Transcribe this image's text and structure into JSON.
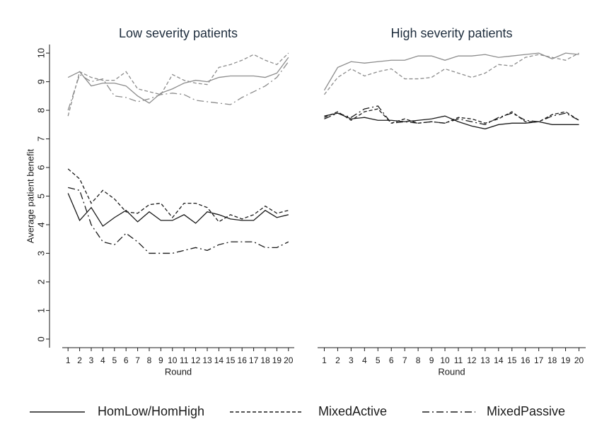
{
  "chart_data": [
    {
      "type": "line",
      "title": "Low severity patients",
      "xlabel": "Round",
      "ylabel": "Average patient benefit",
      "x": [
        1,
        2,
        3,
        4,
        5,
        6,
        7,
        8,
        9,
        10,
        11,
        12,
        13,
        14,
        15,
        16,
        17,
        18,
        19,
        20
      ],
      "xlim": [
        0.5,
        20.5
      ],
      "xticks": [
        1,
        2,
        3,
        4,
        5,
        6,
        7,
        8,
        9,
        10,
        11,
        12,
        13,
        14,
        15,
        16,
        17,
        18,
        19,
        20
      ],
      "ylim": [
        -0.3,
        10.3
      ],
      "yticks": [
        0,
        1,
        2,
        3,
        4,
        5,
        6,
        7,
        8,
        9,
        10
      ],
      "series": [
        {
          "color": "#8c8c8c",
          "dash": "solid",
          "values": [
            9.15,
            9.35,
            8.85,
            8.95,
            8.95,
            8.85,
            8.5,
            8.25,
            8.6,
            8.75,
            8.95,
            9.05,
            9.0,
            9.15,
            9.2,
            9.2,
            9.2,
            9.15,
            9.3,
            9.85
          ]
        },
        {
          "color": "#8c8c8c",
          "dash": "dashed",
          "values": [
            7.8,
            9.35,
            9.15,
            9.05,
            9.05,
            9.35,
            8.75,
            8.65,
            8.55,
            9.25,
            9.05,
            8.95,
            8.9,
            9.5,
            9.6,
            9.75,
            9.95,
            9.75,
            9.6,
            10.0
          ]
        },
        {
          "color": "#8c8c8c",
          "dash": "dashdot",
          "values": [
            8.0,
            9.25,
            9.0,
            9.1,
            8.5,
            8.45,
            8.3,
            8.4,
            8.55,
            8.6,
            8.55,
            8.35,
            8.3,
            8.25,
            8.2,
            8.45,
            8.65,
            8.85,
            9.15,
            9.7
          ]
        },
        {
          "color": "#1a1a1a",
          "dash": "solid",
          "values": [
            5.1,
            4.15,
            4.6,
            3.95,
            4.25,
            4.5,
            4.1,
            4.45,
            4.15,
            4.15,
            4.35,
            4.05,
            4.45,
            4.35,
            4.2,
            4.15,
            4.15,
            4.5,
            4.25,
            4.35
          ]
        },
        {
          "color": "#1a1a1a",
          "dash": "dashed",
          "values": [
            5.95,
            5.6,
            4.75,
            5.2,
            4.9,
            4.45,
            4.4,
            4.7,
            4.75,
            4.25,
            4.75,
            4.75,
            4.6,
            4.1,
            4.35,
            4.2,
            4.35,
            4.65,
            4.4,
            4.5
          ]
        },
        {
          "color": "#1a1a1a",
          "dash": "dashdot",
          "values": [
            5.3,
            5.2,
            4.0,
            3.4,
            3.3,
            3.7,
            3.4,
            3.0,
            3.0,
            3.0,
            3.1,
            3.2,
            3.1,
            3.3,
            3.4,
            3.4,
            3.4,
            3.2,
            3.2,
            3.4
          ]
        }
      ]
    },
    {
      "type": "line",
      "title": "High severity patients",
      "xlabel": "Round",
      "x": [
        1,
        2,
        3,
        4,
        5,
        6,
        7,
        8,
        9,
        10,
        11,
        12,
        13,
        14,
        15,
        16,
        17,
        18,
        19,
        20
      ],
      "xlim": [
        0.5,
        20.5
      ],
      "xticks": [
        1,
        2,
        3,
        4,
        5,
        6,
        7,
        8,
        9,
        10,
        11,
        12,
        13,
        14,
        15,
        16,
        17,
        18,
        19,
        20
      ],
      "ylim": [
        -0.3,
        10.3
      ],
      "series": [
        {
          "color": "#8c8c8c",
          "dash": "solid",
          "values": [
            8.7,
            9.5,
            9.7,
            9.65,
            9.7,
            9.75,
            9.75,
            9.9,
            9.9,
            9.75,
            9.9,
            9.9,
            9.95,
            9.85,
            9.9,
            9.95,
            10.0,
            9.8,
            10.0,
            9.95
          ]
        },
        {
          "color": "#8c8c8c",
          "dash": "dashed",
          "values": [
            8.55,
            9.15,
            9.45,
            9.2,
            9.35,
            9.45,
            9.1,
            9.1,
            9.15,
            9.45,
            9.3,
            9.15,
            9.3,
            9.6,
            9.55,
            9.85,
            9.95,
            9.85,
            9.75,
            10.0
          ]
        },
        {
          "color": "#1a1a1a",
          "dash": "solid",
          "values": [
            7.8,
            7.9,
            7.7,
            7.75,
            7.65,
            7.65,
            7.6,
            7.65,
            7.7,
            7.8,
            7.6,
            7.45,
            7.35,
            7.5,
            7.55,
            7.55,
            7.6,
            7.5,
            7.5,
            7.5
          ]
        },
        {
          "color": "#1a1a1a",
          "dash": "dashed",
          "values": [
            7.75,
            7.95,
            7.65,
            7.95,
            8.05,
            7.55,
            7.7,
            7.55,
            7.6,
            7.55,
            7.75,
            7.7,
            7.55,
            7.7,
            7.95,
            7.6,
            7.6,
            7.85,
            7.95,
            7.65
          ]
        },
        {
          "color": "#1a1a1a",
          "dash": "dashdot",
          "values": [
            7.7,
            7.9,
            7.75,
            8.05,
            8.15,
            7.55,
            7.6,
            7.55,
            7.6,
            7.55,
            7.7,
            7.6,
            7.5,
            7.75,
            7.9,
            7.65,
            7.6,
            7.8,
            7.9,
            7.65
          ]
        }
      ]
    }
  ],
  "legend": [
    {
      "name": "HomLow/HomHigh",
      "dash": "solid",
      "color": "#1a1a1a"
    },
    {
      "name": "MixedActive",
      "dash": "dashed",
      "color": "#1a1a1a"
    },
    {
      "name": "MixedPassive",
      "dash": "dashdot",
      "color": "#1a1a1a"
    }
  ]
}
